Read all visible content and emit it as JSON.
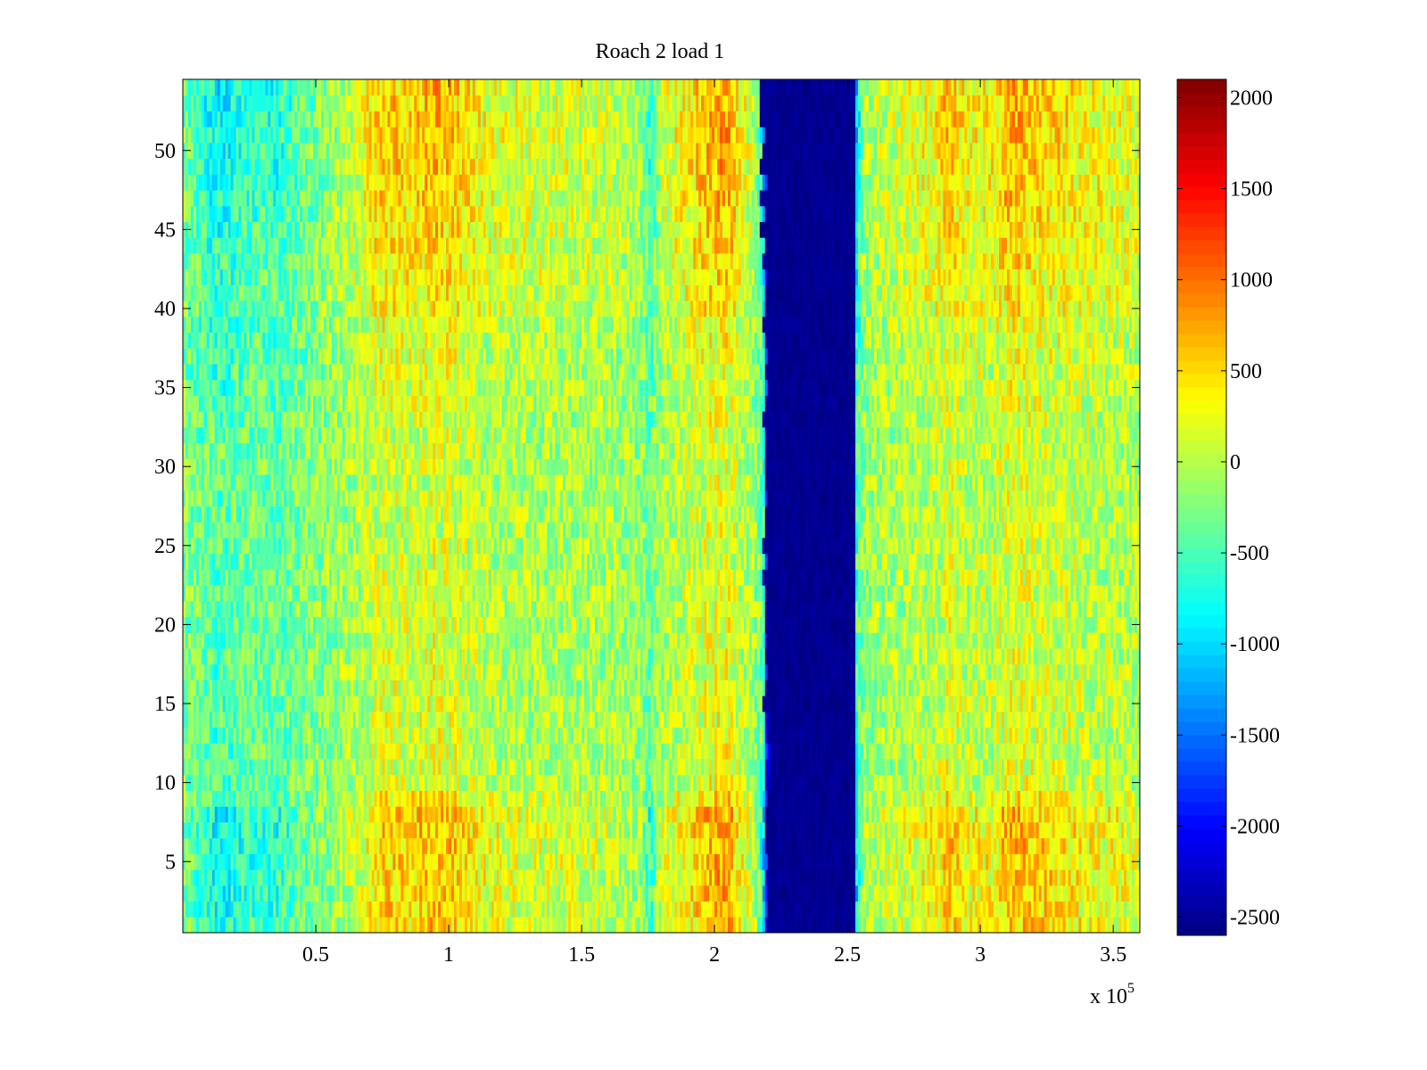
{
  "chart_data": {
    "type": "heatmap",
    "title": "Roach 2 load 1",
    "xlabel": "",
    "ylabel": "",
    "x_multiplier_label": {
      "base": "x 10",
      "exponent": "5"
    },
    "xlim": [
      0,
      3.6
    ],
    "ylim": [
      0.5,
      54.5
    ],
    "x_ticks": [
      {
        "value": 0.5,
        "label": "0.5"
      },
      {
        "value": 1,
        "label": "1"
      },
      {
        "value": 1.5,
        "label": "1.5"
      },
      {
        "value": 2,
        "label": "2"
      },
      {
        "value": 2.5,
        "label": "2.5"
      },
      {
        "value": 3,
        "label": "3"
      },
      {
        "value": 3.5,
        "label": "3.5"
      }
    ],
    "y_ticks": [
      {
        "value": 5,
        "label": "5"
      },
      {
        "value": 10,
        "label": "10"
      },
      {
        "value": 15,
        "label": "15"
      },
      {
        "value": 20,
        "label": "20"
      },
      {
        "value": 25,
        "label": "25"
      },
      {
        "value": 30,
        "label": "30"
      },
      {
        "value": 35,
        "label": "35"
      },
      {
        "value": 40,
        "label": "40"
      },
      {
        "value": 45,
        "label": "45"
      },
      {
        "value": 50,
        "label": "50"
      }
    ],
    "colorbar": {
      "colormap": "jet",
      "range": [
        -2600,
        2100
      ],
      "ticks": [
        {
          "value": 2000,
          "label": "2000"
        },
        {
          "value": 1500,
          "label": "1500"
        },
        {
          "value": 1000,
          "label": "1000"
        },
        {
          "value": 500,
          "label": "500"
        },
        {
          "value": 0,
          "label": "0"
        },
        {
          "value": -500,
          "label": "-500"
        },
        {
          "value": -1000,
          "label": "-1000"
        },
        {
          "value": -1500,
          "label": "-1500"
        },
        {
          "value": -2000,
          "label": "-2000"
        },
        {
          "value": -2500,
          "label": "-2500"
        }
      ]
    },
    "rows": 54,
    "x_profile": [
      [
        0.0,
        -300
      ],
      [
        0.08,
        -700
      ],
      [
        0.15,
        -900
      ],
      [
        0.25,
        -600
      ],
      [
        0.35,
        -700
      ],
      [
        0.45,
        -400
      ],
      [
        0.55,
        -200
      ],
      [
        0.65,
        100
      ],
      [
        0.75,
        600
      ],
      [
        0.85,
        500
      ],
      [
        0.95,
        700
      ],
      [
        1.05,
        500
      ],
      [
        1.15,
        250
      ],
      [
        1.3,
        150
      ],
      [
        1.45,
        150
      ],
      [
        1.6,
        100
      ],
      [
        1.72,
        -100
      ],
      [
        1.76,
        -700
      ],
      [
        1.8,
        100
      ],
      [
        1.9,
        400
      ],
      [
        1.98,
        700
      ],
      [
        2.05,
        800
      ],
      [
        2.1,
        300
      ],
      [
        2.15,
        0
      ],
      [
        2.18,
        -700
      ],
      [
        2.2,
        -2300
      ],
      [
        2.25,
        -2600
      ],
      [
        2.4,
        -2600
      ],
      [
        2.5,
        -2600
      ],
      [
        2.53,
        -1300
      ],
      [
        2.56,
        -100
      ],
      [
        2.65,
        100
      ],
      [
        2.75,
        200
      ],
      [
        2.85,
        400
      ],
      [
        2.88,
        700
      ],
      [
        2.95,
        300
      ],
      [
        3.05,
        350
      ],
      [
        3.1,
        700
      ],
      [
        3.2,
        600
      ],
      [
        3.3,
        500
      ],
      [
        3.45,
        300
      ],
      [
        3.6,
        200
      ]
    ],
    "y_profile": [
      [
        0.5,
        0.85
      ],
      [
        8,
        1.0
      ],
      [
        9.5,
        0.45
      ],
      [
        30,
        0.35
      ],
      [
        40,
        0.6
      ],
      [
        48,
        0.9
      ],
      [
        54.5,
        1.0
      ]
    ],
    "dark_band": {
      "row_start": 1,
      "row_end": 54,
      "x_left_bottom": 2.2,
      "x_left_top": 2.18,
      "x_right": 2.53,
      "value": -2600
    }
  }
}
